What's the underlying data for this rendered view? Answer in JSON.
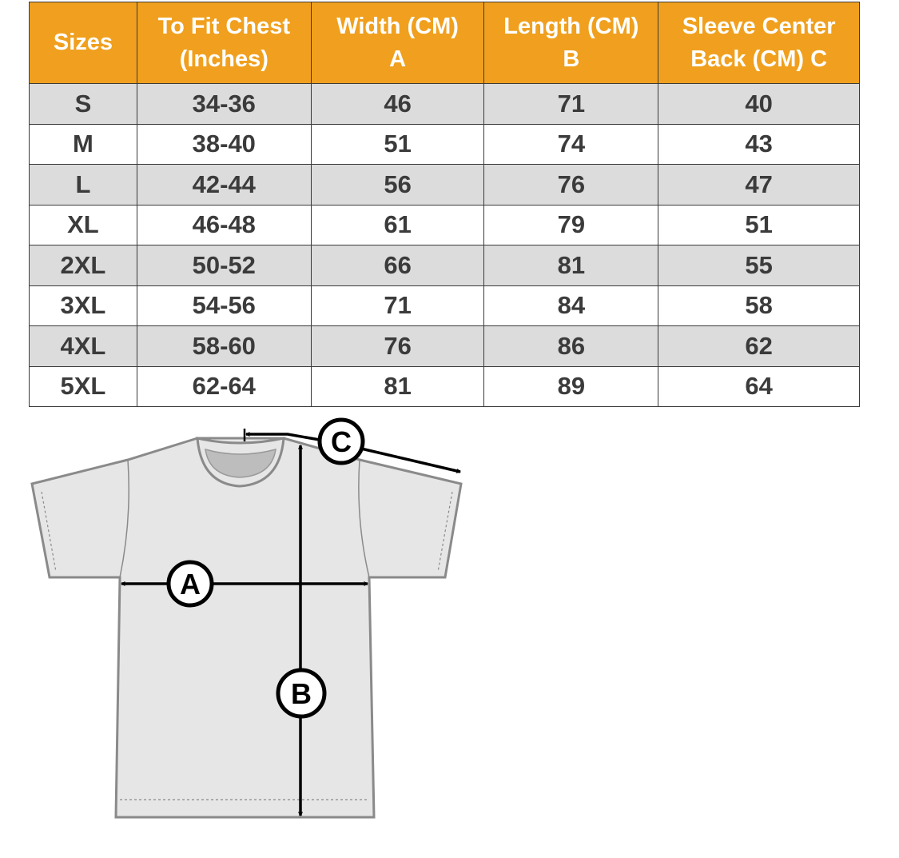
{
  "header_color": "#f0a01e",
  "columns": [
    "Sizes",
    "To Fit Chest (Inches)",
    "Width (CM) A",
    "Length  (CM) B",
    "Sleeve Center Back (CM) C"
  ],
  "column_lines": [
    [
      "Sizes"
    ],
    [
      "To Fit Chest",
      "(Inches)"
    ],
    [
      "Width (CM)",
      "A"
    ],
    [
      "Length  (CM)",
      "B"
    ],
    [
      "Sleeve Center",
      "Back (CM) C"
    ]
  ],
  "rows": [
    [
      "S",
      "34-36",
      "46",
      "71",
      "40"
    ],
    [
      "M",
      "38-40",
      "51",
      "74",
      "43"
    ],
    [
      "L",
      "42-44",
      "56",
      "76",
      "47"
    ],
    [
      "XL",
      "46-48",
      "61",
      "79",
      "51"
    ],
    [
      "2XL",
      "50-52",
      "66",
      "81",
      "55"
    ],
    [
      "3XL",
      "54-56",
      "71",
      "84",
      "58"
    ],
    [
      "4XL",
      "58-60",
      "76",
      "86",
      "62"
    ],
    [
      "5XL",
      "62-64",
      "81",
      "89",
      "64"
    ]
  ],
  "diagram": {
    "label_a": "A",
    "label_b": "B",
    "label_c": "C"
  }
}
